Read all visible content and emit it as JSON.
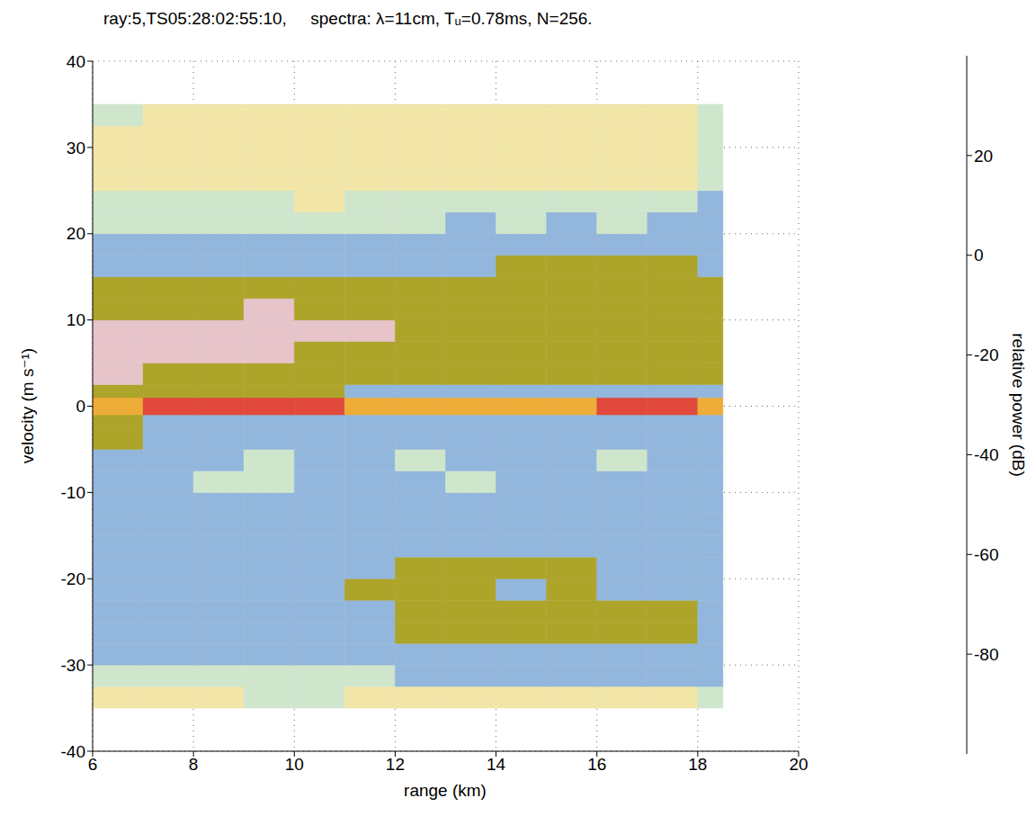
{
  "chart_data": {
    "type": "heatmap",
    "title": "ray:5,TS05:28:02:55:10,     spectra: λ=11cm, Tᵤ=0.78ms, N=256.",
    "x_label": "range (km)",
    "y_label": "velocity (m s⁻¹)",
    "xlim": [
      6,
      20
    ],
    "xticks": [
      6,
      8,
      10,
      12,
      14,
      16,
      18,
      20
    ],
    "ylim": [
      -40,
      40
    ],
    "yticks": [
      -40,
      -30,
      -20,
      -10,
      0,
      10,
      20,
      30,
      40
    ],
    "grid": true,
    "x_edges": [
      6,
      7,
      8,
      9,
      10,
      11,
      12,
      13,
      14,
      15,
      16,
      17,
      18,
      18.5
    ],
    "y_edges": [
      -35,
      -32.5,
      -30,
      -27.5,
      -25,
      -22.5,
      -20,
      -17.5,
      -15,
      -12.5,
      -10,
      -7.5,
      -5,
      -2.5,
      -1,
      1,
      2.5,
      5,
      7.5,
      10,
      12.5,
      15,
      17.5,
      20,
      22.5,
      25,
      27.5,
      30,
      32.5,
      35
    ],
    "cells": [
      [
        -62,
        -65,
        -62,
        -52,
        -52,
        -64,
        -65,
        -64,
        -66,
        -64,
        -65,
        -64,
        -50
      ],
      [
        -52,
        -55,
        -50,
        -48,
        -50,
        -45,
        -42,
        -42,
        -40,
        -40,
        -40,
        -42,
        -42
      ],
      [
        -40,
        -42,
        -40,
        -42,
        -40,
        -40,
        -38,
        -38,
        -38,
        -38,
        -38,
        -38,
        -40
      ],
      [
        -40,
        -40,
        -40,
        -40,
        -38,
        -32,
        -28,
        -26,
        -26,
        -26,
        -25,
        -26,
        -38
      ],
      [
        -40,
        -40,
        -40,
        -40,
        -38,
        -32,
        -28,
        -27,
        -26,
        -26,
        -25,
        -28,
        -38
      ],
      [
        -40,
        -40,
        -40,
        -38,
        -38,
        -30,
        -26,
        -28,
        -32,
        -28,
        -32,
        -35,
        -38
      ],
      [
        -38,
        -40,
        -40,
        -40,
        -40,
        -36,
        -28,
        -30,
        -28,
        -28,
        -35,
        -36,
        -38
      ],
      [
        -40,
        -40,
        -40,
        -40,
        -40,
        -38,
        -36,
        -36,
        -34,
        -38,
        -38,
        -38,
        -40
      ],
      [
        -40,
        -40,
        -42,
        -40,
        -40,
        -40,
        -40,
        -38,
        -40,
        -40,
        -40,
        -40,
        -42
      ],
      [
        -42,
        -40,
        -42,
        -40,
        -42,
        -40,
        -40,
        -40,
        -42,
        -40,
        -40,
        -40,
        -42
      ],
      [
        -40,
        -42,
        -45,
        -48,
        -42,
        -40,
        -42,
        -46,
        -42,
        -40,
        -44,
        -42,
        -44
      ],
      [
        -35,
        -40,
        -42,
        -45,
        -40,
        -42,
        -45,
        -42,
        -42,
        -42,
        -45,
        -42,
        -44
      ],
      [
        -28,
        -38,
        -40,
        -38,
        -40,
        -42,
        -42,
        -42,
        -42,
        -40,
        -42,
        -40,
        -42
      ],
      [
        -25,
        -32,
        -35,
        -35,
        -36,
        -38,
        -38,
        -38,
        -38,
        -38,
        -38,
        -36,
        -38
      ],
      [
        8,
        20,
        18,
        20,
        15,
        5,
        5,
        5,
        5,
        8,
        14,
        15,
        0
      ],
      [
        -24,
        -26,
        -28,
        -30,
        -30,
        -32,
        -34,
        -34,
        -34,
        -34,
        -34,
        -32,
        -36
      ],
      [
        -14,
        -18,
        -20,
        -22,
        -24,
        -26,
        -26,
        -28,
        -28,
        -28,
        -28,
        -28,
        -30
      ],
      [
        -8,
        -8,
        -12,
        -12,
        -18,
        -22,
        -24,
        -24,
        -24,
        -26,
        -24,
        -24,
        -26
      ],
      [
        -12,
        -10,
        -10,
        -10,
        -12,
        -14,
        -20,
        -22,
        -22,
        -22,
        -22,
        -22,
        -24
      ],
      [
        -22,
        -20,
        -18,
        -16,
        -18,
        -20,
        -22,
        -20,
        -20,
        -20,
        -20,
        -22,
        -24
      ],
      [
        -30,
        -28,
        -28,
        -28,
        -26,
        -26,
        -26,
        -24,
        -24,
        -24,
        -22,
        -22,
        -26
      ],
      [
        -36,
        -36,
        -38,
        -38,
        -36,
        -34,
        -34,
        -32,
        -30,
        -30,
        -30,
        -28,
        -32
      ],
      [
        -40,
        -40,
        -42,
        -40,
        -42,
        -40,
        -40,
        -40,
        -40,
        -38,
        -38,
        -38,
        -40
      ],
      [
        -48,
        -46,
        -50,
        -48,
        -52,
        -46,
        -46,
        -42,
        -46,
        -44,
        -46,
        -44,
        -42
      ],
      [
        -55,
        -52,
        -58,
        -56,
        -60,
        -56,
        -55,
        -50,
        -56,
        -55,
        -56,
        -58,
        -44
      ],
      [
        -60,
        -64,
        -60,
        -65,
        -62,
        -64,
        -62,
        -60,
        -64,
        -62,
        -64,
        -62,
        -48
      ],
      [
        -62,
        -64,
        -66,
        -64,
        -65,
        -66,
        -64,
        -65,
        -66,
        -65,
        -64,
        -62,
        -50
      ],
      [
        -64,
        -62,
        -66,
        -64,
        -65,
        -66,
        -64,
        -66,
        -66,
        -65,
        -64,
        -62,
        -52
      ],
      [
        -50,
        -65,
        -60,
        -64,
        -62,
        -65,
        -66,
        -65,
        -64,
        -65,
        -66,
        -62,
        -50
      ]
    ],
    "colorbar": {
      "label": "relative power (dB)",
      "range": [
        -100,
        40
      ],
      "ticks": [
        -80,
        -60,
        -40,
        -20,
        0,
        20
      ],
      "levels": [
        -100,
        -86,
        -72,
        -58,
        -44,
        -30,
        -16,
        -2,
        12,
        26,
        40
      ],
      "colors": [
        "#2b2b2b",
        "#8f8f8f",
        "#f1e5a8",
        "#cfe6cc",
        "#93b6dc",
        "#ada42a",
        "#e6c4ca",
        "#eeac38",
        "#e0493b",
        "#bf3a2c"
      ]
    }
  }
}
